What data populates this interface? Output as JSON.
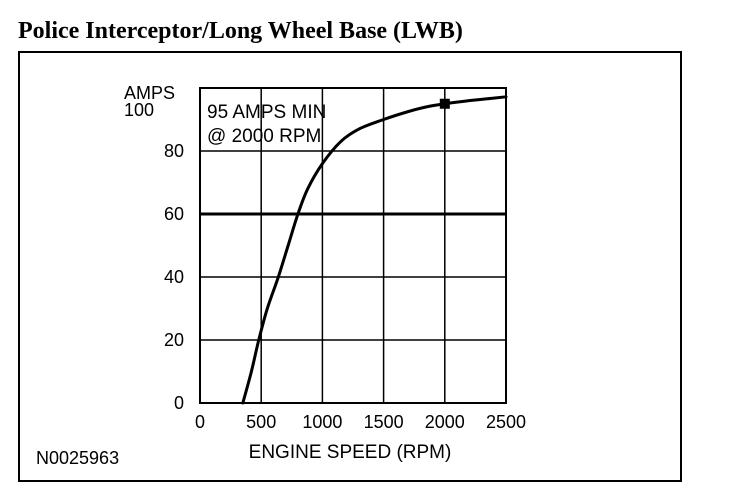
{
  "page": {
    "title": "Police Interceptor/Long Wheel Base (LWB)",
    "figure_id": "N0025963"
  },
  "chart_data": {
    "type": "line",
    "title": "",
    "xlabel": "ENGINE SPEED (RPM)",
    "ylabel": "AMPS",
    "xlim": [
      0,
      2500
    ],
    "ylim": [
      0,
      100
    ],
    "x_ticks": [
      0,
      500,
      1000,
      1500,
      2000,
      2500
    ],
    "y_ticks": [
      0,
      20,
      40,
      60,
      80,
      100
    ],
    "grid": true,
    "emphasized_gridline_y": 60,
    "annotation": [
      "95 AMPS MIN",
      "@ 2000 RPM"
    ],
    "marker": {
      "x": 2000,
      "y": 95,
      "shape": "square"
    },
    "series": [
      {
        "points": [
          [
            350,
            0
          ],
          [
            420,
            10
          ],
          [
            480,
            20
          ],
          [
            550,
            30
          ],
          [
            640,
            40
          ],
          [
            720,
            50
          ],
          [
            800,
            60
          ],
          [
            880,
            68
          ],
          [
            1000,
            76
          ],
          [
            1150,
            83
          ],
          [
            1300,
            87
          ],
          [
            1500,
            90
          ],
          [
            1700,
            92.5
          ],
          [
            1850,
            94
          ],
          [
            2000,
            95
          ],
          [
            2200,
            96
          ],
          [
            2400,
            96.8
          ],
          [
            2500,
            97.2
          ]
        ]
      }
    ],
    "colors": {
      "line": "#000000",
      "grid": "#000000",
      "background": "#ffffff"
    }
  }
}
